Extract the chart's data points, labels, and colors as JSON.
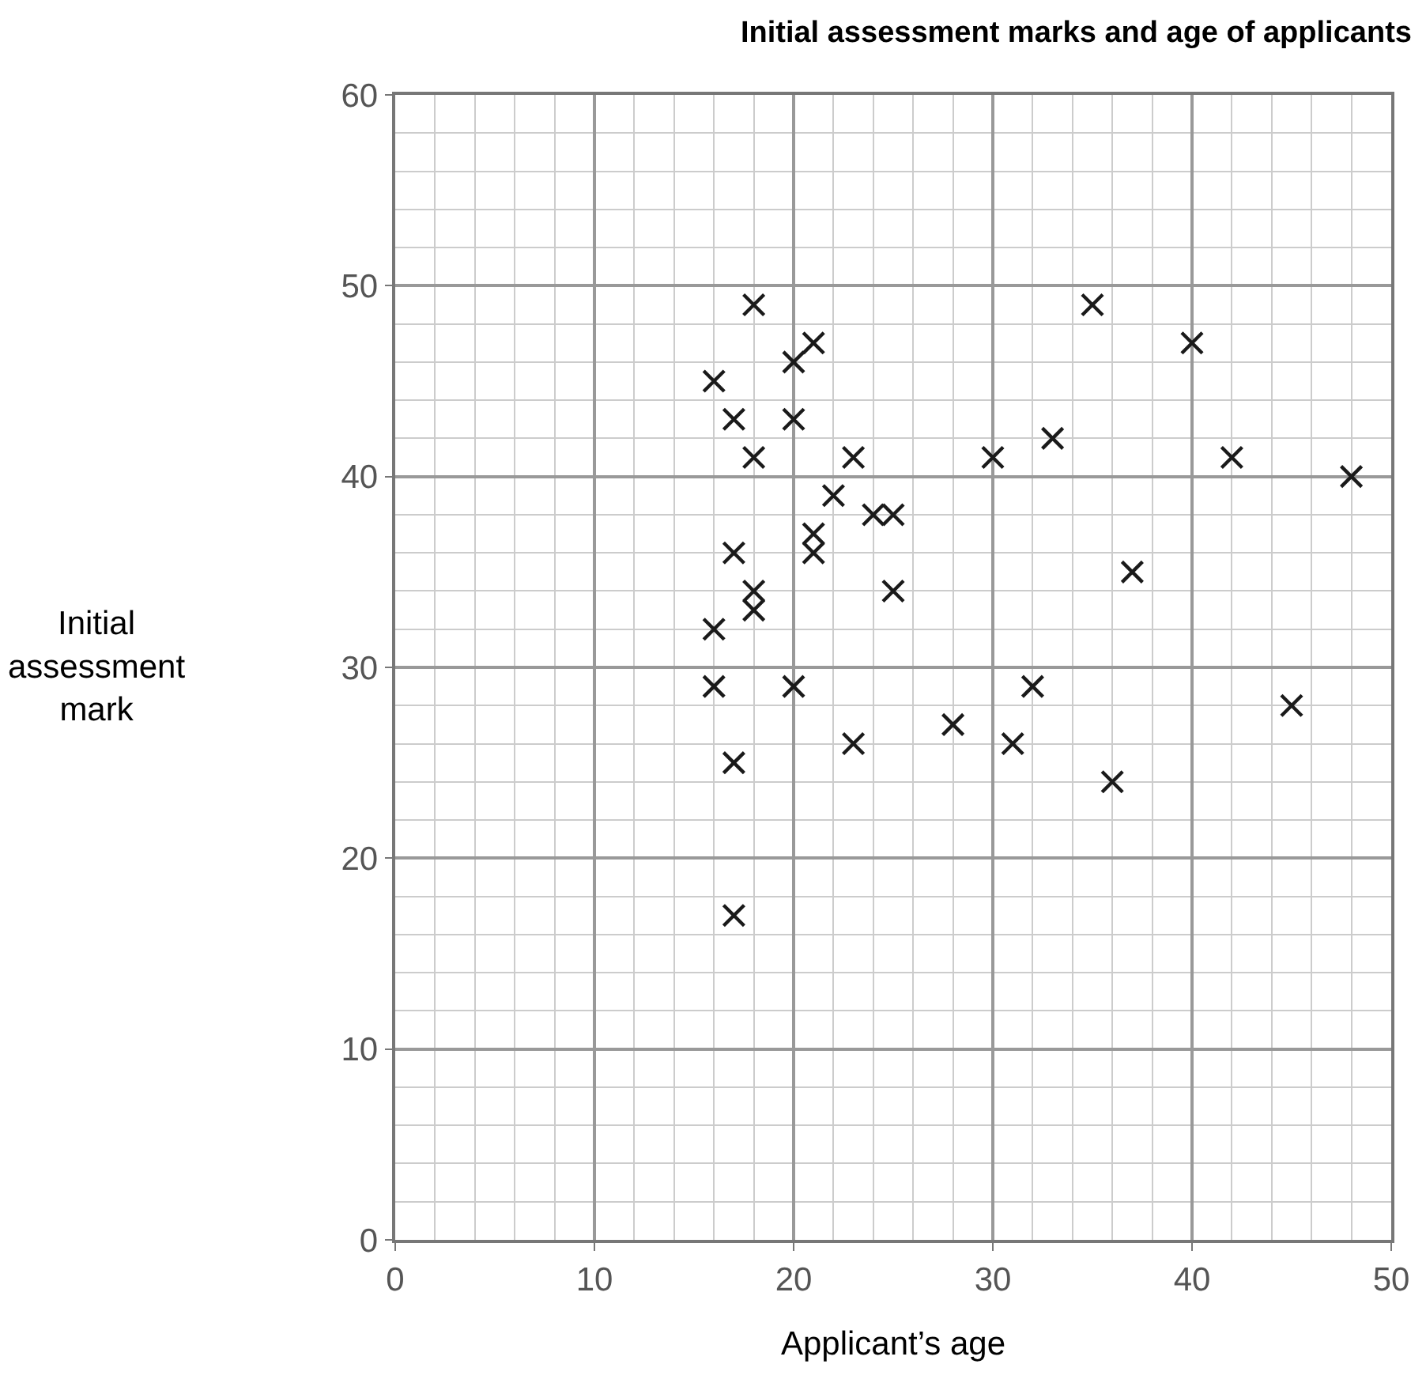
{
  "chart_data": {
    "type": "scatter",
    "title": "Initial assessment marks and age of applicants",
    "xlabel": "Applicant’s age",
    "ylabel": "Initial assessment mark",
    "x": [
      18,
      21,
      20,
      16,
      17,
      20,
      18,
      23,
      22,
      24,
      25,
      21,
      21,
      17,
      18,
      18,
      25,
      16,
      16,
      20,
      17,
      23,
      17,
      28,
      31,
      32,
      36,
      30,
      33,
      35,
      40,
      42,
      48,
      37,
      45
    ],
    "values": [
      49,
      47,
      46,
      45,
      43,
      43,
      41,
      41,
      39,
      38,
      38,
      37,
      36,
      36,
      34,
      33,
      34,
      32,
      29,
      29,
      25,
      26,
      17,
      27,
      26,
      29,
      24,
      41,
      42,
      49,
      47,
      41,
      40,
      35,
      28
    ],
    "color": "#1a1a1a",
    "marker": "cross",
    "xlim": [
      0,
      50
    ],
    "xticks": [
      0,
      10,
      20,
      30,
      40,
      50
    ],
    "ylim": [
      0,
      60
    ],
    "yticks": [
      0,
      10,
      20,
      30,
      40,
      50,
      60
    ],
    "grid": true
  }
}
